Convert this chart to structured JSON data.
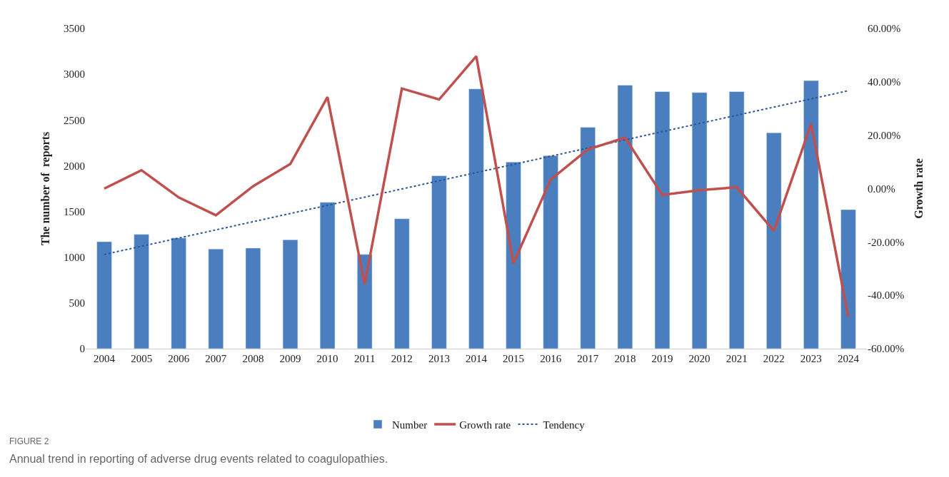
{
  "chart_data": {
    "type": "bar",
    "ylabel": "The number of  reports",
    "y2label": "Growth rate",
    "categories": [
      "2004",
      "2005",
      "2006",
      "2007",
      "2008",
      "2009",
      "2010",
      "2011",
      "2012",
      "2013",
      "2014",
      "2015",
      "2016",
      "2017",
      "2018",
      "2019",
      "2020",
      "2021",
      "2022",
      "2023",
      "2024"
    ],
    "series": [
      {
        "name": "Number",
        "color": "#4a7ebf",
        "values": [
          1170,
          1250,
          1210,
          1090,
          1100,
          1190,
          1600,
          1030,
          1420,
          1890,
          2840,
          2040,
          2110,
          2420,
          2880,
          2810,
          2800,
          2810,
          2360,
          2930,
          1520
        ]
      },
      {
        "name": "Growth rate",
        "type": "line",
        "axis": "y2",
        "color": "#c0504d",
        "line_style": "solid",
        "values": [
          0,
          6.9,
          -3.3,
          -10,
          0.9,
          9.2,
          34.3,
          -35.8,
          37.5,
          33.4,
          49.6,
          -28,
          3.4,
          14.7,
          19.1,
          -2.4,
          -0.6,
          0.5,
          -15.9,
          24.2,
          -48.1
        ]
      },
      {
        "name": "Tendency",
        "type": "line",
        "color": "#2f5597",
        "line_style": "dotted",
        "values": [
          1030,
          null,
          null,
          null,
          null,
          null,
          null,
          null,
          null,
          null,
          null,
          null,
          null,
          null,
          null,
          null,
          null,
          null,
          null,
          null,
          2820
        ]
      }
    ],
    "ylim": [
      0,
      3500
    ],
    "yticks": [
      0,
      500,
      1000,
      1500,
      2000,
      2500,
      3000,
      3500
    ],
    "y2lim": [
      -60,
      60
    ],
    "y2ticks": [
      {
        "value": -60,
        "label": "-60.00%"
      },
      {
        "value": -40,
        "label": "-40.00%"
      },
      {
        "value": -20,
        "label": "-20.00%"
      },
      {
        "value": 0,
        "label": "0.00%"
      },
      {
        "value": 20,
        "label": "20.00%"
      },
      {
        "value": 40,
        "label": "40.00%"
      },
      {
        "value": 60,
        "label": "60.00%"
      }
    ],
    "legend": "bottom",
    "marker": "none",
    "annotations": [
      "FIGURE 2",
      "Annual trend in reporting of adverse drug events related to coagulopathies."
    ]
  }
}
